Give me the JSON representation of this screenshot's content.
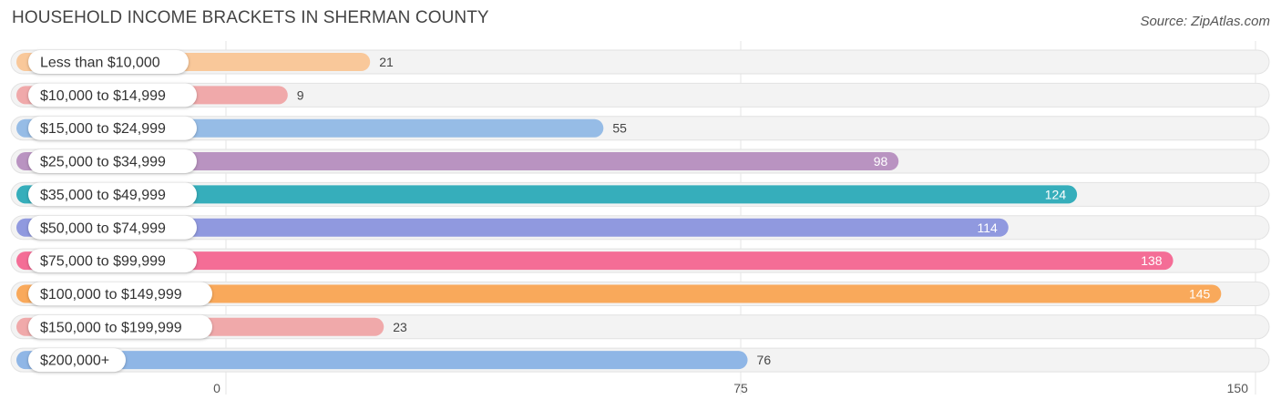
{
  "header": {
    "title": "HOUSEHOLD INCOME BRACKETS IN SHERMAN COUNTY",
    "source": "Source: ZipAtlas.com"
  },
  "chart_data": {
    "type": "bar",
    "orientation": "horizontal",
    "title": "HOUSEHOLD INCOME BRACKETS IN SHERMAN COUNTY",
    "categories": [
      "Less than $10,000",
      "$10,000 to $14,999",
      "$15,000 to $24,999",
      "$25,000 to $34,999",
      "$35,000 to $49,999",
      "$50,000 to $74,999",
      "$75,000 to $99,999",
      "$100,000 to $149,999",
      "$150,000 to $199,999",
      "$200,000+"
    ],
    "values": [
      21,
      9,
      55,
      98,
      124,
      114,
      138,
      145,
      23,
      76
    ],
    "colors": [
      "#f9c89a",
      "#f0a9aa",
      "#96bce6",
      "#b993c1",
      "#36aebb",
      "#9099df",
      "#f46d96",
      "#f9a95b",
      "#f0a9aa",
      "#8fb6e6"
    ],
    "xlim": [
      0,
      150
    ],
    "xticks": [
      0,
      75,
      150
    ],
    "grid": true
  }
}
